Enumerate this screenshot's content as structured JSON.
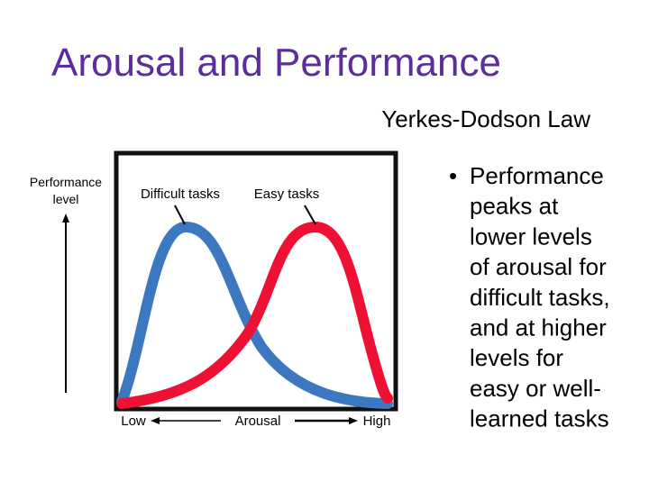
{
  "header": {
    "title": "Arousal and Performance",
    "subtitle": "Yerkes-Dodson Law"
  },
  "diagram": {
    "y_label": [
      "Performance",
      "level"
    ],
    "curve_labels": [
      "Difficult tasks",
      "Easy tasks"
    ],
    "x_labels": [
      "Low",
      "Arousal",
      "High"
    ]
  },
  "bullet": {
    "lines": [
      "Performance",
      "peaks at",
      "lower levels",
      "of arousal for",
      "difficult tasks,",
      "and at higher",
      "levels for",
      "easy or well-",
      "learned tasks"
    ]
  }
}
